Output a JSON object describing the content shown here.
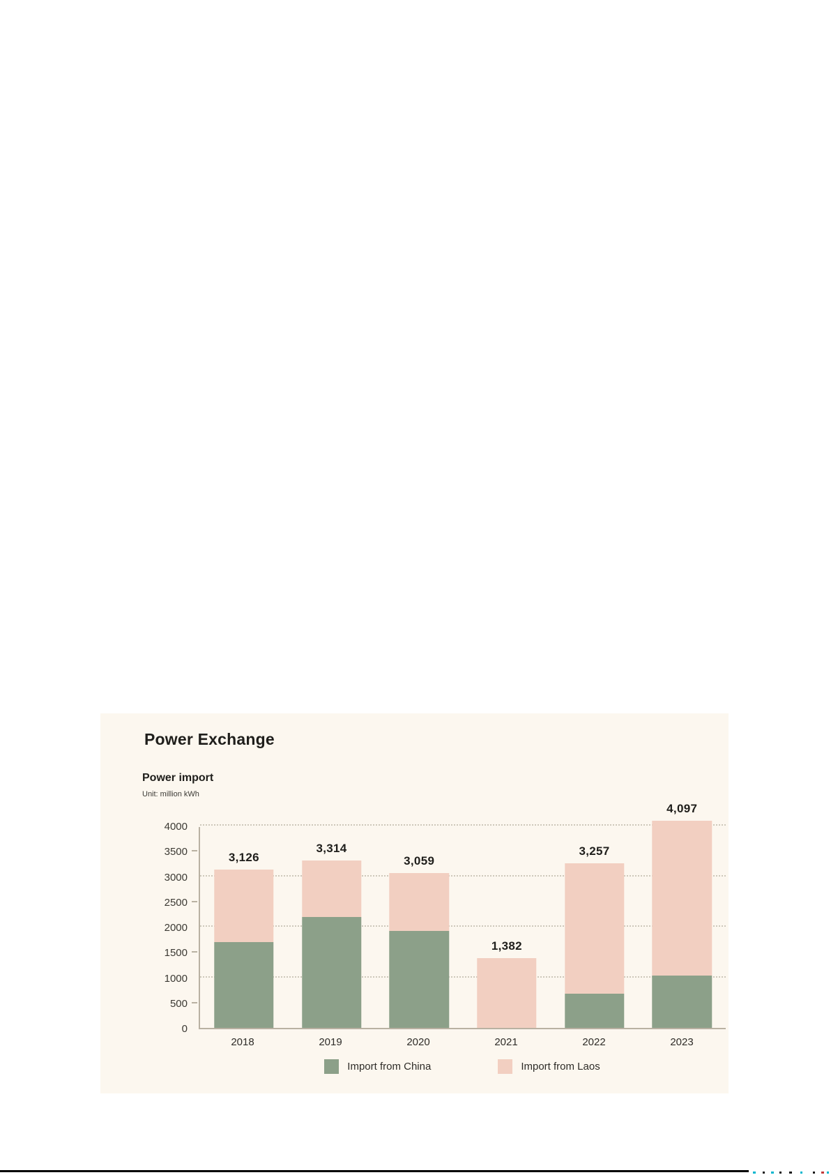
{
  "page": {
    "background": "#ffffff",
    "card_background": "#fcf7ef"
  },
  "card": {
    "title": "Power Exchange",
    "subtitle": "Power import",
    "unit": "Unit: million kWh"
  },
  "chart_data": {
    "type": "bar",
    "stacked": true,
    "title": "Power import",
    "unit_label": "Unit: million kWh",
    "categories": [
      "2018",
      "2019",
      "2020",
      "2021",
      "2022",
      "2023"
    ],
    "series": [
      {
        "name": "Import from China",
        "color": "#8ca089",
        "values": [
          1700,
          2200,
          1920,
          0,
          670,
          1040
        ]
      },
      {
        "name": "Import from Laos",
        "color": "#f2cfc1",
        "values": [
          1426,
          1114,
          1139,
          1382,
          2587,
          3057
        ]
      }
    ],
    "totals": [
      3126,
      3314,
      3059,
      1382,
      3257,
      4097
    ],
    "total_labels": [
      "3,126",
      "3,314",
      "3,059",
      "1,382",
      "3,257",
      "4,097"
    ],
    "xlabel": "",
    "ylabel": "",
    "ylim": [
      0,
      4000
    ],
    "yticks": [
      0,
      500,
      1000,
      1500,
      2000,
      2500,
      3000,
      3500,
      4000
    ],
    "gridlines": [
      1000,
      2000,
      3000,
      4000
    ],
    "minor_ticks": [
      500,
      1500,
      2500,
      3500
    ],
    "grid": "dotted-horizontal",
    "legend_position": "bottom",
    "colors": {
      "axis": "#b9b1a2",
      "gridline": "#cdc7ba",
      "text": "#1f1e1b"
    }
  }
}
